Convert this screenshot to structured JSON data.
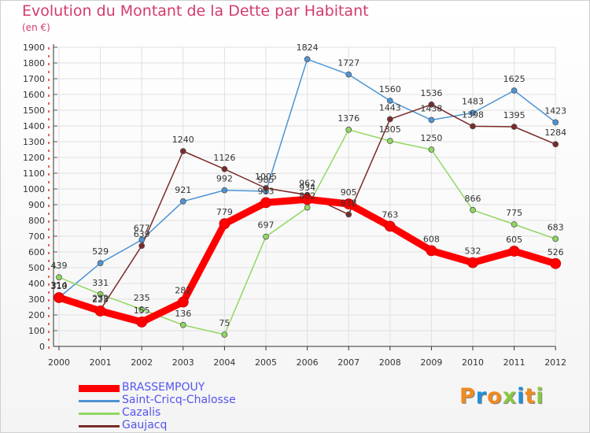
{
  "title": "Evolution du Montant de la Dette par Habitant",
  "unit_label": "(en €)",
  "logo_text": "Proxiti",
  "chart_data": {
    "type": "line",
    "title": "Evolution du Montant de la Dette par Habitant",
    "ylabel": "(en €)",
    "xlabel": "",
    "categories": [
      "2000",
      "2001",
      "2002",
      "2003",
      "2004",
      "2005",
      "2006",
      "2007",
      "2008",
      "2009",
      "2010",
      "2011",
      "2012"
    ],
    "ylim": [
      0,
      1900
    ],
    "yticks": [
      0,
      100,
      200,
      300,
      400,
      500,
      600,
      700,
      800,
      900,
      1000,
      1100,
      1200,
      1300,
      1400,
      1500,
      1600,
      1700,
      1800,
      1900
    ],
    "legend_position": "bottom-left",
    "series": [
      {
        "name": "BRASSEMPOUY",
        "color": "#ff0000",
        "values": [
          310,
          225,
          155,
          282,
          779,
          913,
          934,
          905,
          763,
          608,
          532,
          605,
          526
        ]
      },
      {
        "name": "Saint-Cricq-Chalosse",
        "color": "#4d94d4",
        "values": [
          310,
          529,
          677,
          921,
          992,
          985,
          1824,
          1727,
          1560,
          1438,
          1483,
          1625,
          1423
        ]
      },
      {
        "name": "Cazalis",
        "color": "#90d860",
        "values": [
          439,
          331,
          235,
          136,
          75,
          697,
          882,
          1376,
          1305,
          1250,
          866,
          775,
          683
        ]
      },
      {
        "name": "Gaujacq",
        "color": "#7a2a2a",
        "values": [
          314,
          232,
          639,
          1240,
          1126,
          1005,
          962,
          838,
          1443,
          1536,
          1398,
          1395,
          1284
        ]
      }
    ]
  },
  "logo_colors": [
    "#f08a1e",
    "#1f8fd8",
    "#f08a1e",
    "#88c840",
    "#1f8fd8",
    "#f08a1e",
    "#88c840"
  ]
}
